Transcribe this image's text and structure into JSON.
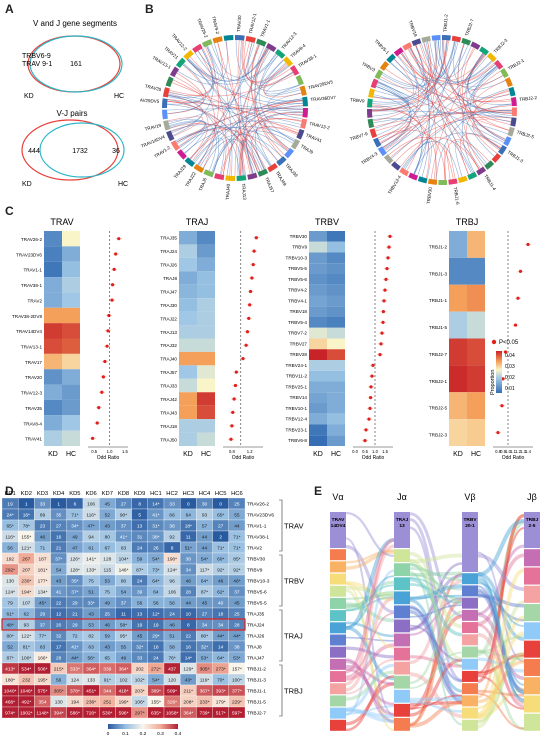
{
  "panels": {
    "A": "A",
    "B": "B",
    "C": "C",
    "D": "D",
    "E": "E"
  },
  "panel_a": {
    "venn1_title": "V and J gene segments",
    "venn1_left_labels": [
      "TRBV6-9",
      "TRAV 9-1"
    ],
    "venn1_center": "161",
    "venn1_kd": "KD",
    "venn1_hc": "HC",
    "venn2_title": "V-J pairs",
    "venn2_left": "444",
    "venn2_center": "1732",
    "venn2_right": "36",
    "venn2_kd": "KD",
    "venn2_hc": "HC",
    "colors": {
      "kd": "#e8403a",
      "hc": "#2bb5c6"
    }
  },
  "panel_b": {
    "left_labels_top": [
      "TRAV30",
      "TRAV12-1",
      "TRAV1-1",
      "TRAV12-3",
      "TRAV8-4",
      "TRAV38-1",
      "TRAV29DV5",
      "TRAV36DV7",
      "TRAV13-2",
      "TRAV41",
      "TRAJ9",
      "TRAJ39",
      "TRAJ49",
      "TRAJ57",
      "TRAJ13",
      "TRAJ40",
      "TRAJ6",
      "TRAJ22",
      "TRAJ29"
    ],
    "left_labels_right": [
      "TRAV1-2",
      "TRAV14DV4",
      "TRAV19",
      "TRAV29DV5",
      "TRAV20",
      "TRAV13-1",
      "TRAV21",
      "TRAV12-2",
      "TRAV26-2",
      "TRAV9-2"
    ],
    "right_top_labels": [
      "TRBJ1-2",
      "TRBJ2-7",
      "TRBJ2-3",
      "TRBJ2-1",
      "TRBJ2-2",
      "TRBJ2-5",
      "TRBJ1-3",
      "TRBJ1-4",
      "TRBJ1-6"
    ],
    "right_side_labels": [
      "TRBV30",
      "TRBV12-4",
      "TRBV4-3",
      "TRBV7-9",
      "TRBV9",
      "TRBV3",
      "TRBV5-1",
      "TRBV18"
    ]
  },
  "panel_c": {
    "legend_sig": "P<0.05",
    "legend_title": "Proportion",
    "legend_ticks": [
      "0.04",
      "0.03",
      "0.02",
      "0.01"
    ],
    "xlab_kd": "KD",
    "xlab_hc": "HC",
    "odd_ratio": "Odd Ratio",
    "trav": {
      "title": "TRAV",
      "rows": [
        "TRAV26-2",
        "TRAV23DV6",
        "TRAV1-1",
        "TRAV38-1",
        "TRAV2",
        "TRAV38-2DV8",
        "TRAV14DV4",
        "TRAV13-1",
        "TRAV17",
        "TRAV20",
        "TRAV12-3",
        "TRAV35",
        "TRAV8-4",
        "TRAV41"
      ],
      "kd": [
        0.008,
        0.007,
        0.006,
        0.012,
        0.012,
        0.03,
        0.042,
        0.04,
        0.028,
        0.009,
        0.012,
        0.008,
        0.012,
        0.016
      ],
      "hc": [
        0.022,
        0.012,
        0.014,
        0.016,
        0.015,
        0.03,
        0.04,
        0.038,
        0.025,
        0.012,
        0.01,
        0.01,
        0.015,
        0.018
      ],
      "or": [
        1.3,
        1.2,
        1.15,
        1.1,
        1.08,
        0.98,
        0.95,
        0.92,
        0.85,
        0.8,
        0.75,
        0.65,
        0.6,
        0.45
      ],
      "ticks": [
        "0.5",
        "1.0",
        "1.5"
      ]
    },
    "traj": {
      "title": "TRAJ",
      "rows": [
        "TRAJ35",
        "TRAJ24",
        "TRAJ26",
        "TRAJ8",
        "TRAJ47",
        "TRAJ30",
        "TRAJ22",
        "TRAJ13",
        "TRAJ32",
        "TRAJ40",
        "TRAJ57",
        "TRAJ33",
        "TRAJ42",
        "TRAJ43",
        "TRAJ18",
        "TRAJ50"
      ],
      "kd": [
        0.012,
        0.016,
        0.015,
        0.012,
        0.013,
        0.014,
        0.015,
        0.016,
        0.018,
        0.03,
        0.015,
        0.018,
        0.03,
        0.03,
        0.016,
        0.016
      ],
      "hc": [
        0.008,
        0.01,
        0.012,
        0.014,
        0.014,
        0.016,
        0.016,
        0.016,
        0.018,
        0.03,
        0.02,
        0.022,
        0.042,
        0.04,
        0.016,
        0.018
      ],
      "or": [
        1.35,
        1.3,
        1.28,
        1.25,
        1.22,
        1.2,
        1.18,
        1.15,
        1.12,
        1.05,
        0.9,
        0.88,
        0.85,
        0.82,
        0.8,
        0.78
      ],
      "ticks": [
        "0.8",
        "1.2"
      ]
    },
    "trbv": {
      "title": "TRBV",
      "rows": [
        "TRBV30",
        "TRBV9",
        "TRBV10-3",
        "TRBV5-5",
        "TRBV5-6",
        "TRBV4-2",
        "TRBV4-1",
        "TRBV18",
        "TRBV5-4",
        "TRBV7-2",
        "TRBV27",
        "TRBV28",
        "TRBV24-1",
        "TRBV11-2",
        "TRBV25-1",
        "TRBV14",
        "TRBV10-1",
        "TRBV12-4",
        "TRBV23-1",
        "TRBV6-8"
      ],
      "kd": [
        0.01,
        0.018,
        0.01,
        0.01,
        0.009,
        0.01,
        0.011,
        0.01,
        0.008,
        0.02,
        0.025,
        0.045,
        0.016,
        0.014,
        0.012,
        0.011,
        0.01,
        0.012,
        0.006,
        0.005
      ],
      "hc": [
        0.006,
        0.014,
        0.008,
        0.009,
        0.008,
        0.009,
        0.01,
        0.009,
        0.007,
        0.018,
        0.022,
        0.04,
        0.016,
        0.014,
        0.012,
        0.012,
        0.012,
        0.014,
        0.012,
        0.01
      ],
      "or": [
        1.75,
        1.7,
        1.65,
        1.6,
        1.55,
        1.5,
        1.45,
        1.42,
        1.4,
        1.35,
        1.3,
        1.25,
        0.9,
        0.85,
        0.8,
        0.78,
        0.75,
        0.7,
        0.55,
        0.5
      ],
      "ticks": [
        "0.0",
        "0.5",
        "1.0",
        "1.5"
      ]
    },
    "trbj": {
      "title": "TRBJ",
      "rows": [
        "TRBJ1-2",
        "TRBJ1-3",
        "TRBJ1-1",
        "TRBJ1-5",
        "TRBJ2-7",
        "TRBJ2-1",
        "TRBJ2-5",
        "TRBJ2-3"
      ],
      "kd": [
        0.012,
        0.008,
        0.03,
        0.016,
        0.042,
        0.044,
        0.028,
        0.025
      ],
      "hc": [
        0.028,
        0.008,
        0.032,
        0.018,
        0.04,
        0.042,
        0.03,
        0.026
      ],
      "or": [
        1.4,
        1.25,
        1.2,
        1.15,
        0.95,
        0.9,
        0.88,
        0.8
      ],
      "ticks": [
        "0.8",
        "0.9",
        "1.0",
        "1.1",
        "1.2",
        "1.3",
        "1.4"
      ]
    }
  },
  "panel_d": {
    "columns": [
      "KD1",
      "KD2",
      "KD3",
      "KD4",
      "KD5",
      "KD6",
      "KD7",
      "KD8",
      "KD9",
      "HC1",
      "HC2",
      "HC3",
      "HC4",
      "HC5",
      "HC6"
    ],
    "rows": [
      {
        "name": "TRAV26-2",
        "v": [
          "19",
          "1",
          "33",
          "1",
          "6",
          "106",
          "45",
          "27",
          "8",
          "14*",
          "33",
          "0",
          "30",
          "0",
          "25"
        ],
        "n": [
          0.05,
          0,
          0.08,
          0,
          0.02,
          0.25,
          0.12,
          0.07,
          0.02,
          0.04,
          0.08,
          0,
          0.07,
          0,
          0.06
        ]
      },
      {
        "name": "TRAV23DV6",
        "v": [
          "24*",
          "16*",
          "89",
          "35",
          "71*",
          "116*",
          "52",
          "90*",
          "5",
          "41*",
          "66",
          "64",
          "93",
          "65*",
          "55"
        ],
        "n": [
          0.05,
          0.04,
          0.2,
          0.08,
          0.16,
          0.26,
          0.12,
          0.2,
          0.01,
          0.09,
          0.15,
          0.14,
          0.21,
          0.15,
          0.12
        ]
      },
      {
        "name": "TRAV1-1",
        "v": [
          "65*",
          "78*",
          "23",
          "27",
          "34*",
          "47*",
          "43",
          "37",
          "13",
          "31*",
          "38",
          "18*",
          "57",
          "27",
          "44"
        ],
        "n": [
          0.15,
          0.18,
          0.05,
          0.06,
          0.08,
          0.11,
          0.1,
          0.08,
          0.03,
          0.07,
          0.09,
          0.04,
          0.13,
          0.06,
          0.1
        ]
      },
      {
        "name": "TRAV38-1",
        "v": [
          "116*",
          "155*",
          "46",
          "16",
          "49",
          "94",
          "80",
          "41*",
          "31",
          "38*",
          "92",
          "11",
          "44",
          "2",
          "71*"
        ],
        "n": [
          0.26,
          0.35,
          0.1,
          0.04,
          0.11,
          0.21,
          0.18,
          0.09,
          0.07,
          0.09,
          0.21,
          0.02,
          0.1,
          0,
          0.16
        ]
      },
      {
        "name": "TRAV2",
        "v": [
          "56",
          "121*",
          "71",
          "21",
          "47",
          "61",
          "67",
          "83",
          "24",
          "26",
          "8",
          "51*",
          "44",
          "71*",
          "71*"
        ],
        "n": [
          0.13,
          0.27,
          0.16,
          0.05,
          0.11,
          0.14,
          0.15,
          0.19,
          0.05,
          0.06,
          0.02,
          0.11,
          0.1,
          0.16,
          0.16
        ]
      },
      {
        "name": "TRBV30",
        "v": [
          "192",
          "267",
          "187",
          "37*",
          "126*",
          "141*",
          "128",
          "104*",
          "59",
          "54*",
          "190*",
          "38",
          "54*",
          "60*",
          "85*"
        ],
        "n": [
          0.43,
          0.6,
          0.42,
          0.08,
          0.28,
          0.32,
          0.29,
          0.23,
          0.13,
          0.12,
          0.43,
          0.09,
          0.12,
          0.14,
          0.19
        ]
      },
      {
        "name": "TRBV9",
        "v": [
          "292*",
          "207",
          "181*",
          "54",
          "128*",
          "133*",
          "115",
          "146*",
          "87*",
          "73*",
          "124*",
          "34",
          "117*",
          "92*",
          "92*"
        ],
        "n": [
          0.66,
          0.47,
          0.41,
          0.12,
          0.29,
          0.3,
          0.26,
          0.33,
          0.2,
          0.16,
          0.28,
          0.08,
          0.26,
          0.21,
          0.21
        ]
      },
      {
        "name": "TRBV10-3",
        "v": [
          "130",
          "230*",
          "177*",
          "43",
          "35*",
          "75",
          "53",
          "80",
          "24",
          "64*",
          "96",
          "46",
          "64*",
          "46",
          "46*"
        ],
        "n": [
          0.29,
          0.52,
          0.4,
          0.1,
          0.08,
          0.17,
          0.12,
          0.18,
          0.05,
          0.14,
          0.22,
          0.1,
          0.14,
          0.1,
          0.1
        ]
      },
      {
        "name": "TRBV5-6",
        "v": [
          "124*",
          "194*",
          "134*",
          "41",
          "37*",
          "51",
          "75",
          "54",
          "39",
          "64",
          "106",
          "28",
          "87*",
          "62*",
          "37"
        ],
        "n": [
          0.28,
          0.44,
          0.3,
          0.09,
          0.08,
          0.11,
          0.17,
          0.12,
          0.09,
          0.14,
          0.24,
          0.06,
          0.2,
          0.14,
          0.08
        ]
      },
      {
        "name": "TRBV5-5",
        "v": [
          "79",
          "107",
          "45*",
          "22",
          "29",
          "33*",
          "49",
          "37",
          "56",
          "56",
          "56",
          "44",
          "45",
          "40",
          "45"
        ],
        "n": [
          0.18,
          0.24,
          0.1,
          0.05,
          0.07,
          0.07,
          0.11,
          0.08,
          0.13,
          0.13,
          0.13,
          0.1,
          0.1,
          0.09,
          0.1
        ]
      },
      {
        "name": "TRAJ35",
        "v": [
          "61*",
          "62",
          "29",
          "12",
          "21",
          "43",
          "25",
          "11",
          "13",
          "12*",
          "24",
          "10",
          "27",
          "18",
          "25"
        ],
        "n": [
          0.14,
          0.14,
          0.07,
          0.03,
          0.05,
          0.1,
          0.06,
          0.02,
          0.03,
          0.03,
          0.05,
          0.02,
          0.06,
          0.04,
          0.06
        ]
      },
      {
        "name": "TRAJ24",
        "v": [
          "48*",
          "93",
          "37",
          "20",
          "29",
          "53",
          "46",
          "58*",
          "19",
          "19",
          "46",
          "8",
          "34",
          "34",
          "28"
        ],
        "n": [
          0.11,
          0.21,
          0.08,
          0.05,
          0.07,
          0.12,
          0.1,
          0.13,
          0.04,
          0.04,
          0.1,
          0.02,
          0.08,
          0.08,
          0.06
        ]
      },
      {
        "name": "TRAJ26",
        "v": [
          "80*",
          "122*",
          "77*",
          "32",
          "72",
          "82",
          "59",
          "95*",
          "45",
          "29*",
          "51",
          "22",
          "80*",
          "44*",
          "44*"
        ],
        "n": [
          0.18,
          0.28,
          0.17,
          0.07,
          0.16,
          0.19,
          0.13,
          0.21,
          0.1,
          0.07,
          0.12,
          0.05,
          0.18,
          0.1,
          0.1
        ]
      },
      {
        "name": "TRAJ8",
        "v": [
          "52",
          "81*",
          "63",
          "17",
          "41*",
          "63",
          "43",
          "55",
          "32*",
          "18",
          "58",
          "16",
          "32*",
          "14",
          "38"
        ],
        "n": [
          0.12,
          0.18,
          0.14,
          0.04,
          0.09,
          0.14,
          0.1,
          0.12,
          0.07,
          0.04,
          0.13,
          0.04,
          0.07,
          0.03,
          0.09
        ]
      },
      {
        "name": "TRAJ47",
        "v": [
          "87*",
          "100*",
          "166*",
          "28",
          "44*",
          "56*",
          "65",
          "49",
          "33",
          "24",
          "76*",
          "14*",
          "53*",
          "64*",
          "53*"
        ],
        "n": [
          0.2,
          0.23,
          0.38,
          0.06,
          0.1,
          0.13,
          0.15,
          0.11,
          0.07,
          0.05,
          0.17,
          0.03,
          0.12,
          0.14,
          0.12
        ]
      },
      {
        "name": "TRBJ1-2",
        "v": [
          "413*",
          "534*",
          "506*",
          "215*",
          "333*",
          "364*",
          "339",
          "364*",
          "202",
          "272*",
          "437",
          "129*",
          "305*",
          "273*",
          "157*"
        ],
        "n": [
          0.93,
          1,
          1,
          0.49,
          0.75,
          0.82,
          0.77,
          0.82,
          0.46,
          0.61,
          0.99,
          0.29,
          0.69,
          0.62,
          0.35
        ]
      },
      {
        "name": "TRBJ1-3",
        "v": [
          "180*",
          "232",
          "195*",
          "56",
          "124",
          "133",
          "91*",
          "102",
          "102*",
          "54*",
          "120",
          "43*",
          "119*",
          "70*",
          "100*"
        ],
        "n": [
          0.41,
          0.52,
          0.44,
          0.13,
          0.28,
          0.3,
          0.21,
          0.23,
          0.23,
          0.12,
          0.27,
          0.1,
          0.27,
          0.16,
          0.23
        ]
      },
      {
        "name": "TRBJ1-1",
        "v": [
          "1040*",
          "1046*",
          "575*",
          "305*",
          "378*",
          "451*",
          "344",
          "418*",
          "203*",
          "389*",
          "509*",
          "211*",
          "367*",
          "393*",
          "377*"
        ],
        "n": [
          1,
          1,
          1,
          0.69,
          0.85,
          1,
          0.78,
          0.94,
          0.46,
          0.88,
          1,
          0.48,
          0.83,
          0.89,
          0.85
        ]
      },
      {
        "name": "TRBJ1-5",
        "v": [
          "466*",
          "492*",
          "354",
          "130",
          "194",
          "236*",
          "251",
          "199*",
          "106*",
          "155*",
          "326*",
          "208*",
          "233*",
          "179*",
          "229*"
        ],
        "n": [
          1,
          1,
          0.8,
          0.29,
          0.44,
          0.53,
          0.57,
          0.45,
          0.24,
          0.35,
          0.74,
          0.47,
          0.53,
          0.4,
          0.52
        ]
      },
      {
        "name": "TRBJ2-7",
        "v": [
          "974*",
          "1902*",
          "1148*",
          "394*",
          "586*",
          "720*",
          "530*",
          "596*",
          "297*",
          "635*",
          "1058*",
          "364*",
          "739*",
          "517*",
          "597*"
        ],
        "n": [
          1,
          1,
          1,
          0.89,
          1,
          1,
          1,
          1,
          0.67,
          1,
          1,
          0.82,
          1,
          1,
          1
        ]
      }
    ],
    "groups": [
      "TRAV",
      "TRBV",
      "TRAJ",
      "TRBJ"
    ],
    "legend_ticks": [
      "0",
      "0.1",
      "0.2",
      "0.3",
      "0.4"
    ]
  },
  "panel_e": {
    "headers": [
      "Vα",
      "Jα",
      "Vβ",
      "Jβ"
    ],
    "main_labels": [
      "TRAV\n14DV4",
      "TRAJ\n13",
      "TRBV\n20-1",
      "TRBJ\n2-5"
    ]
  }
}
